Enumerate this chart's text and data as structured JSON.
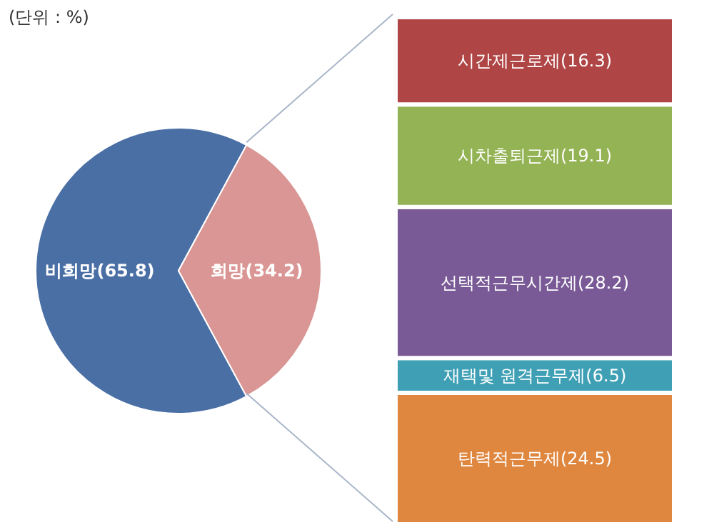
{
  "chart_data": [
    {
      "type": "pie",
      "categories": [
        "비희망",
        "희망"
      ],
      "values": [
        65.8,
        34.2
      ],
      "colors": [
        "#4a6fa5",
        "#d99694"
      ],
      "value_labels": [
        "(65.8)",
        "(34.2)"
      ],
      "legend": false,
      "annotations": [
        "(단위 : %)"
      ]
    },
    {
      "type": "bar",
      "stacked": true,
      "categories": [
        null
      ],
      "legend": false,
      "series": [
        {
          "name": "탄력적근무제",
          "color": "#e0873f",
          "values": [
            24.5
          ],
          "value_labels": [
            "(24.5)"
          ]
        },
        {
          "name": "재택및 원격근무제",
          "color": "#3fa0b5",
          "values": [
            6.5
          ],
          "value_labels": [
            "(6.5)"
          ]
        },
        {
          "name": "선택적근무시간제",
          "color": "#7a5a96",
          "values": [
            28.2
          ],
          "value_labels": [
            "(28.2)"
          ]
        },
        {
          "name": "시차출퇴근제",
          "color": "#93b354",
          "values": [
            19.1
          ],
          "value_labels": [
            "(19.1)"
          ]
        },
        {
          "name": "시간제근로제",
          "color": "#b04545",
          "values": [
            16.3
          ],
          "value_labels": [
            "(16.3)"
          ]
        }
      ]
    }
  ]
}
